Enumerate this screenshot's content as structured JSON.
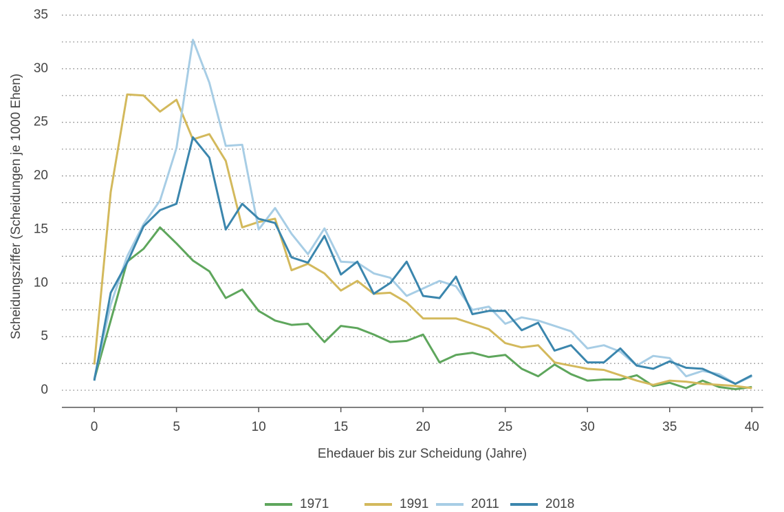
{
  "chart_data": {
    "type": "line",
    "x_label": "Ehedauer bis zur Scheidung (Jahre)",
    "y_label": "Scheidungsziffer (Scheidungen je 1000 Ehen)",
    "x": [
      0,
      1,
      2,
      3,
      4,
      5,
      6,
      7,
      8,
      9,
      10,
      11,
      12,
      13,
      14,
      15,
      16,
      17,
      18,
      19,
      20,
      21,
      22,
      23,
      24,
      25,
      26,
      27,
      28,
      29,
      30,
      31,
      32,
      33,
      34,
      35,
      36,
      37,
      38,
      39,
      40
    ],
    "series": [
      {
        "name": "1971",
        "color": "#5ea65c",
        "values": [
          1.0,
          6.5,
          12.0,
          13.2,
          15.2,
          13.7,
          12.1,
          11.1,
          8.6,
          9.4,
          7.4,
          6.5,
          6.1,
          6.2,
          4.5,
          6.0,
          5.8,
          5.2,
          4.5,
          4.6,
          5.2,
          2.6,
          3.3,
          3.5,
          3.1,
          3.3,
          2.0,
          1.3,
          2.4,
          1.5,
          0.9,
          1.0,
          1.0,
          1.4,
          0.4,
          0.7,
          0.2,
          0.9,
          0.3,
          0.1,
          0.3
        ]
      },
      {
        "name": "1991",
        "color": "#d3b95c",
        "values": [
          2.4,
          18.5,
          27.6,
          27.5,
          26.0,
          27.1,
          23.4,
          23.9,
          21.4,
          15.2,
          15.7,
          16.0,
          11.2,
          11.8,
          10.9,
          9.3,
          10.2,
          9.0,
          9.1,
          8.2,
          6.7,
          6.7,
          6.7,
          6.2,
          5.7,
          4.4,
          4.0,
          4.2,
          2.6,
          2.3,
          2.0,
          1.9,
          1.4,
          0.9,
          0.5,
          0.9,
          0.8,
          0.6,
          0.5,
          0.4,
          0.2
        ]
      },
      {
        "name": "2011",
        "color": "#a7cde5",
        "values": [
          1.1,
          8.0,
          12.5,
          15.5,
          17.7,
          22.6,
          32.7,
          28.7,
          22.8,
          22.9,
          15.0,
          17.0,
          14.6,
          12.7,
          15.1,
          12.0,
          11.9,
          10.9,
          10.5,
          8.8,
          9.5,
          10.2,
          9.7,
          7.5,
          7.8,
          6.2,
          6.8,
          6.5,
          6.0,
          5.5,
          3.9,
          4.2,
          3.6,
          2.3,
          3.2,
          3.0,
          1.3,
          1.8,
          1.5,
          0.6,
          1.3
        ]
      },
      {
        "name": "2018",
        "color": "#3b86ad",
        "values": [
          0.9,
          9.1,
          11.9,
          15.3,
          16.8,
          17.4,
          23.6,
          21.7,
          15.0,
          17.4,
          16.0,
          15.6,
          12.4,
          11.9,
          14.4,
          10.8,
          12.0,
          9.0,
          10.0,
          12.0,
          8.8,
          8.6,
          10.6,
          7.1,
          7.4,
          7.4,
          5.6,
          6.3,
          3.7,
          4.2,
          2.6,
          2.6,
          3.9,
          2.3,
          2.0,
          2.7,
          2.1,
          2.0,
          1.3,
          0.6,
          1.4
        ]
      }
    ],
    "xlim": [
      -1.97,
      40.7
    ],
    "ylim": [
      -1.6,
      35.5
    ],
    "xticks": [
      0,
      5,
      10,
      15,
      20,
      25,
      30,
      35,
      40
    ],
    "yticks": [
      0,
      5,
      10,
      15,
      20,
      25,
      30,
      35
    ],
    "y_minor_grid": [
      2.5,
      7.5,
      12.5,
      17.5,
      22.5,
      27.5,
      32.5
    ],
    "grid": true,
    "legend": "bottom"
  }
}
